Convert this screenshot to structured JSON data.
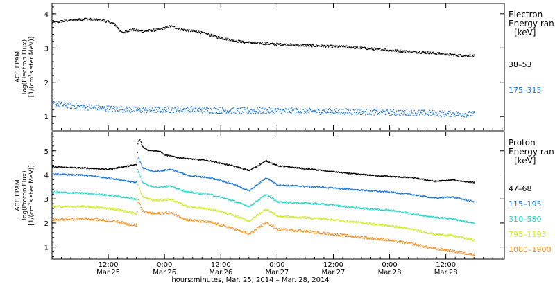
{
  "chart_data": [
    {
      "type": "scatter",
      "panel": "electron",
      "ylabel_lines": [
        "ACE EPAM",
        "log(Electron Flux)",
        "[1/(cm²s ster MeV)]"
      ],
      "ylim": [
        0.6,
        4.3
      ],
      "yticks": [
        1,
        2,
        3,
        4
      ],
      "legend_title_lines": [
        "Electron",
        "Energy ran",
        "[keV]"
      ],
      "series": [
        {
          "name": "38–53",
          "color": "#000000",
          "noise": 0.035,
          "values": [
            [
              0,
              3.75
            ],
            [
              0.15,
              3.82
            ],
            [
              0.3,
              3.86
            ],
            [
              0.45,
              3.82
            ],
            [
              0.55,
              3.72
            ],
            [
              0.62,
              3.45
            ],
            [
              0.7,
              3.55
            ],
            [
              0.8,
              3.5
            ],
            [
              0.95,
              3.55
            ],
            [
              1.05,
              3.65
            ],
            [
              1.15,
              3.55
            ],
            [
              1.3,
              3.48
            ],
            [
              1.5,
              3.3
            ],
            [
              1.7,
              3.18
            ],
            [
              2.0,
              3.12
            ],
            [
              2.3,
              3.08
            ],
            [
              2.6,
              3.05
            ],
            [
              2.9,
              2.97
            ],
            [
              3.2,
              2.9
            ],
            [
              3.45,
              2.85
            ],
            [
              3.6,
              2.8
            ],
            [
              3.75,
              2.78
            ]
          ]
        },
        {
          "name": "175–315",
          "color": "#1e78d2",
          "noise": 0.09,
          "values": [
            [
              0,
              1.38
            ],
            [
              0.2,
              1.32
            ],
            [
              0.45,
              1.25
            ],
            [
              0.8,
              1.2
            ],
            [
              1.2,
              1.22
            ],
            [
              1.6,
              1.18
            ],
            [
              2.0,
              1.18
            ],
            [
              2.4,
              1.16
            ],
            [
              2.8,
              1.15
            ],
            [
              3.2,
              1.12
            ],
            [
              3.5,
              1.1
            ],
            [
              3.75,
              1.08
            ]
          ]
        }
      ]
    },
    {
      "type": "scatter",
      "panel": "proton",
      "ylabel_lines": [
        "ACE EPAM",
        "log(Proton Flux)",
        "[1/(cm²s ster MeV)]"
      ],
      "ylim": [
        0.5,
        5.8
      ],
      "yticks": [
        1,
        2,
        3,
        4,
        5
      ],
      "legend_title_lines": [
        "Proton",
        "Energy ran",
        "[keV]"
      ],
      "series": [
        {
          "name": "47–68",
          "color": "#000000",
          "noise": 0.025,
          "values": [
            [
              0,
              4.35
            ],
            [
              0.3,
              4.3
            ],
            [
              0.5,
              4.25
            ],
            [
              0.75,
              4.45
            ],
            [
              0.76,
              5.4
            ],
            [
              0.78,
              5.5
            ],
            [
              0.8,
              5.2
            ],
            [
              0.85,
              5.05
            ],
            [
              0.95,
              5.0
            ],
            [
              1.0,
              4.85
            ],
            [
              1.1,
              4.75
            ],
            [
              1.2,
              4.7
            ],
            [
              1.4,
              4.6
            ],
            [
              1.6,
              4.4
            ],
            [
              1.75,
              4.2
            ],
            [
              1.9,
              4.6
            ],
            [
              2.0,
              4.4
            ],
            [
              2.2,
              4.3
            ],
            [
              2.4,
              4.2
            ],
            [
              2.7,
              4.05
            ],
            [
              3.0,
              3.95
            ],
            [
              3.2,
              3.9
            ],
            [
              3.4,
              3.75
            ],
            [
              3.55,
              3.8
            ],
            [
              3.75,
              3.7
            ]
          ]
        },
        {
          "name": "115–195",
          "color": "#1e78d2",
          "noise": 0.03,
          "values": [
            [
              0,
              4.05
            ],
            [
              0.3,
              4.0
            ],
            [
              0.55,
              3.85
            ],
            [
              0.75,
              3.7
            ],
            [
              0.76,
              4.8
            ],
            [
              0.8,
              4.3
            ],
            [
              0.9,
              4.15
            ],
            [
              1.05,
              4.25
            ],
            [
              1.2,
              4.0
            ],
            [
              1.4,
              3.9
            ],
            [
              1.6,
              3.65
            ],
            [
              1.75,
              3.35
            ],
            [
              1.9,
              3.9
            ],
            [
              2.0,
              3.6
            ],
            [
              2.2,
              3.55
            ],
            [
              2.4,
              3.5
            ],
            [
              2.7,
              3.4
            ],
            [
              3.0,
              3.3
            ],
            [
              3.2,
              3.2
            ],
            [
              3.4,
              3.05
            ],
            [
              3.55,
              3.1
            ],
            [
              3.75,
              2.9
            ]
          ]
        },
        {
          "name": "310–580",
          "color": "#22d4c4",
          "noise": 0.035,
          "values": [
            [
              0,
              3.3
            ],
            [
              0.3,
              3.25
            ],
            [
              0.55,
              3.15
            ],
            [
              0.75,
              3.0
            ],
            [
              0.76,
              4.2
            ],
            [
              0.8,
              3.7
            ],
            [
              0.9,
              3.5
            ],
            [
              1.05,
              3.55
            ],
            [
              1.2,
              3.3
            ],
            [
              1.4,
              3.2
            ],
            [
              1.6,
              2.95
            ],
            [
              1.75,
              2.7
            ],
            [
              1.9,
              3.2
            ],
            [
              2.0,
              2.9
            ],
            [
              2.2,
              2.85
            ],
            [
              2.4,
              2.8
            ],
            [
              2.7,
              2.65
            ],
            [
              3.0,
              2.55
            ],
            [
              3.2,
              2.4
            ],
            [
              3.4,
              2.25
            ],
            [
              3.55,
              2.2
            ],
            [
              3.75,
              2.0
            ]
          ]
        },
        {
          "name": "795–1193",
          "color": "#cfe61c",
          "noise": 0.04,
          "values": [
            [
              0,
              2.7
            ],
            [
              0.3,
              2.7
            ],
            [
              0.55,
              2.6
            ],
            [
              0.75,
              2.4
            ],
            [
              0.76,
              3.6
            ],
            [
              0.8,
              3.1
            ],
            [
              0.9,
              2.95
            ],
            [
              1.05,
              3.0
            ],
            [
              1.2,
              2.7
            ],
            [
              1.4,
              2.6
            ],
            [
              1.6,
              2.35
            ],
            [
              1.75,
              2.1
            ],
            [
              1.9,
              2.6
            ],
            [
              2.0,
              2.3
            ],
            [
              2.2,
              2.25
            ],
            [
              2.4,
              2.2
            ],
            [
              2.7,
              2.05
            ],
            [
              3.0,
              1.9
            ],
            [
              3.2,
              1.75
            ],
            [
              3.4,
              1.55
            ],
            [
              3.55,
              1.5
            ],
            [
              3.75,
              1.3
            ]
          ]
        },
        {
          "name": "1060–1900",
          "color": "#f08c1e",
          "noise": 0.05,
          "values": [
            [
              0,
              2.15
            ],
            [
              0.3,
              2.2
            ],
            [
              0.55,
              2.1
            ],
            [
              0.75,
              1.9
            ],
            [
              0.76,
              3.0
            ],
            [
              0.8,
              2.5
            ],
            [
              0.9,
              2.4
            ],
            [
              1.05,
              2.45
            ],
            [
              1.2,
              2.15
            ],
            [
              1.4,
              2.05
            ],
            [
              1.6,
              1.8
            ],
            [
              1.75,
              1.55
            ],
            [
              1.9,
              2.05
            ],
            [
              2.0,
              1.75
            ],
            [
              2.2,
              1.7
            ],
            [
              2.4,
              1.6
            ],
            [
              2.7,
              1.45
            ],
            [
              3.0,
              1.3
            ],
            [
              3.2,
              1.15
            ],
            [
              3.4,
              0.95
            ],
            [
              3.55,
              0.85
            ],
            [
              3.75,
              0.7
            ]
          ]
        }
      ]
    }
  ],
  "time_axis": {
    "range_days": [
      0,
      4.02
    ],
    "ticks": [
      {
        "t": 0.5,
        "time": "12:00",
        "date": "Mar.25"
      },
      {
        "t": 1.0,
        "time": "0:00",
        "date": "Mar.26"
      },
      {
        "t": 1.5,
        "time": "12:00",
        "date": "Mar.26"
      },
      {
        "t": 2.0,
        "time": "0:00",
        "date": "Mar.27"
      },
      {
        "t": 2.5,
        "time": "12:00",
        "date": "Mar.27"
      },
      {
        "t": 3.0,
        "time": "0:00",
        "date": "Mar.28"
      },
      {
        "t": 3.5,
        "time": "12:00",
        "date": "Mar.28"
      }
    ],
    "xlabel": "hours:minutes, Mar. 25, 2014 – Mar. 28, 2014"
  }
}
